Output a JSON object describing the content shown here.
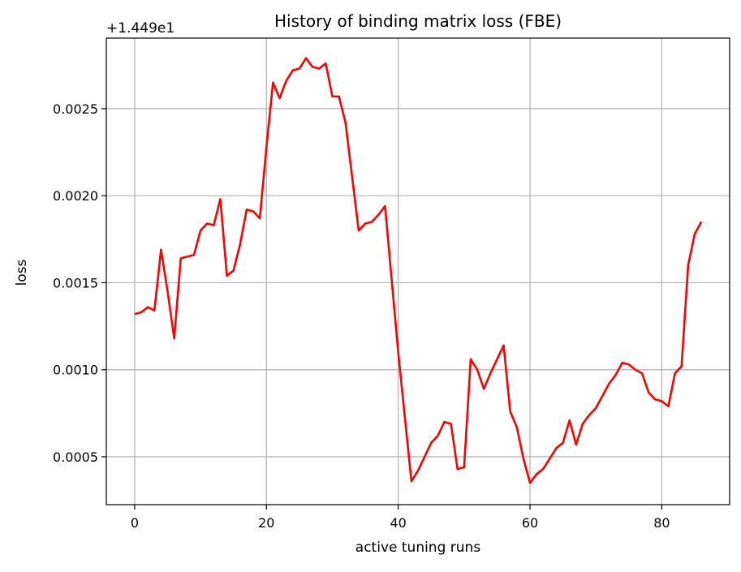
{
  "chart_data": {
    "type": "line",
    "title": "History of binding matrix loss (FBE)",
    "xlabel": "active tuning runs",
    "ylabel": "loss",
    "y_offset_text": "+1.449e1",
    "xlim": [
      -4.3,
      90.3
    ],
    "ylim": [
      0.000225,
      0.002905
    ],
    "x_ticks": [
      0,
      20,
      40,
      60,
      80
    ],
    "x_tick_labels": [
      "0",
      "20",
      "40",
      "60",
      "80"
    ],
    "y_ticks": [
      0.0005,
      0.001,
      0.0015,
      0.002,
      0.0025
    ],
    "y_tick_labels": [
      "0.0005",
      "0.0010",
      "0.0015",
      "0.0020",
      "0.0025"
    ],
    "grid": true,
    "line_color": "#ff0000",
    "series": [
      {
        "x": [
          0,
          1,
          2,
          3,
          4,
          5,
          6,
          7,
          8,
          9,
          10,
          11,
          12,
          13,
          14,
          15,
          16,
          17,
          18,
          19,
          20,
          21,
          22,
          23,
          24,
          25,
          26,
          27,
          28,
          29,
          30,
          31,
          32,
          33,
          34,
          35,
          36,
          37,
          38,
          39,
          40,
          41,
          42,
          43,
          44,
          45,
          46,
          47,
          48,
          49,
          50,
          51,
          52,
          53,
          54,
          55,
          56,
          57,
          58,
          59,
          60,
          61,
          62,
          63,
          64,
          65,
          66,
          67,
          68,
          69,
          70,
          71,
          72,
          73,
          74,
          75,
          76,
          77,
          78,
          79,
          80,
          81,
          82,
          83,
          84,
          85,
          86
        ],
        "values": [
          0.00132,
          0.00133,
          0.00136,
          0.00134,
          0.00169,
          0.00145,
          0.00118,
          0.00164,
          0.00165,
          0.00166,
          0.0018,
          0.00184,
          0.00183,
          0.00198,
          0.00154,
          0.00157,
          0.00172,
          0.00192,
          0.00191,
          0.00187,
          0.00228,
          0.00265,
          0.00256,
          0.00266,
          0.00272,
          0.00273,
          0.00279,
          0.00274,
          0.00273,
          0.00276,
          0.00257,
          0.00257,
          0.00242,
          0.00211,
          0.0018,
          0.00184,
          0.00185,
          0.00189,
          0.00194,
          0.00152,
          0.0011,
          0.00073,
          0.00036,
          0.00042,
          0.0005,
          0.00058,
          0.00062,
          0.0007,
          0.00069,
          0.00043,
          0.00044,
          0.00106,
          0.001,
          0.00089,
          0.00098,
          0.00106,
          0.00114,
          0.00076,
          0.00067,
          0.00049,
          0.00035,
          0.0004,
          0.00043,
          0.00049,
          0.00055,
          0.00058,
          0.00071,
          0.00057,
          0.00069,
          0.00074,
          0.00078,
          0.00085,
          0.00092,
          0.00097,
          0.00104,
          0.00103,
          0.001,
          0.00098,
          0.00087,
          0.00083,
          0.00082,
          0.00079,
          0.00098,
          0.00102,
          0.0016,
          0.00178,
          0.00185
        ]
      }
    ]
  }
}
